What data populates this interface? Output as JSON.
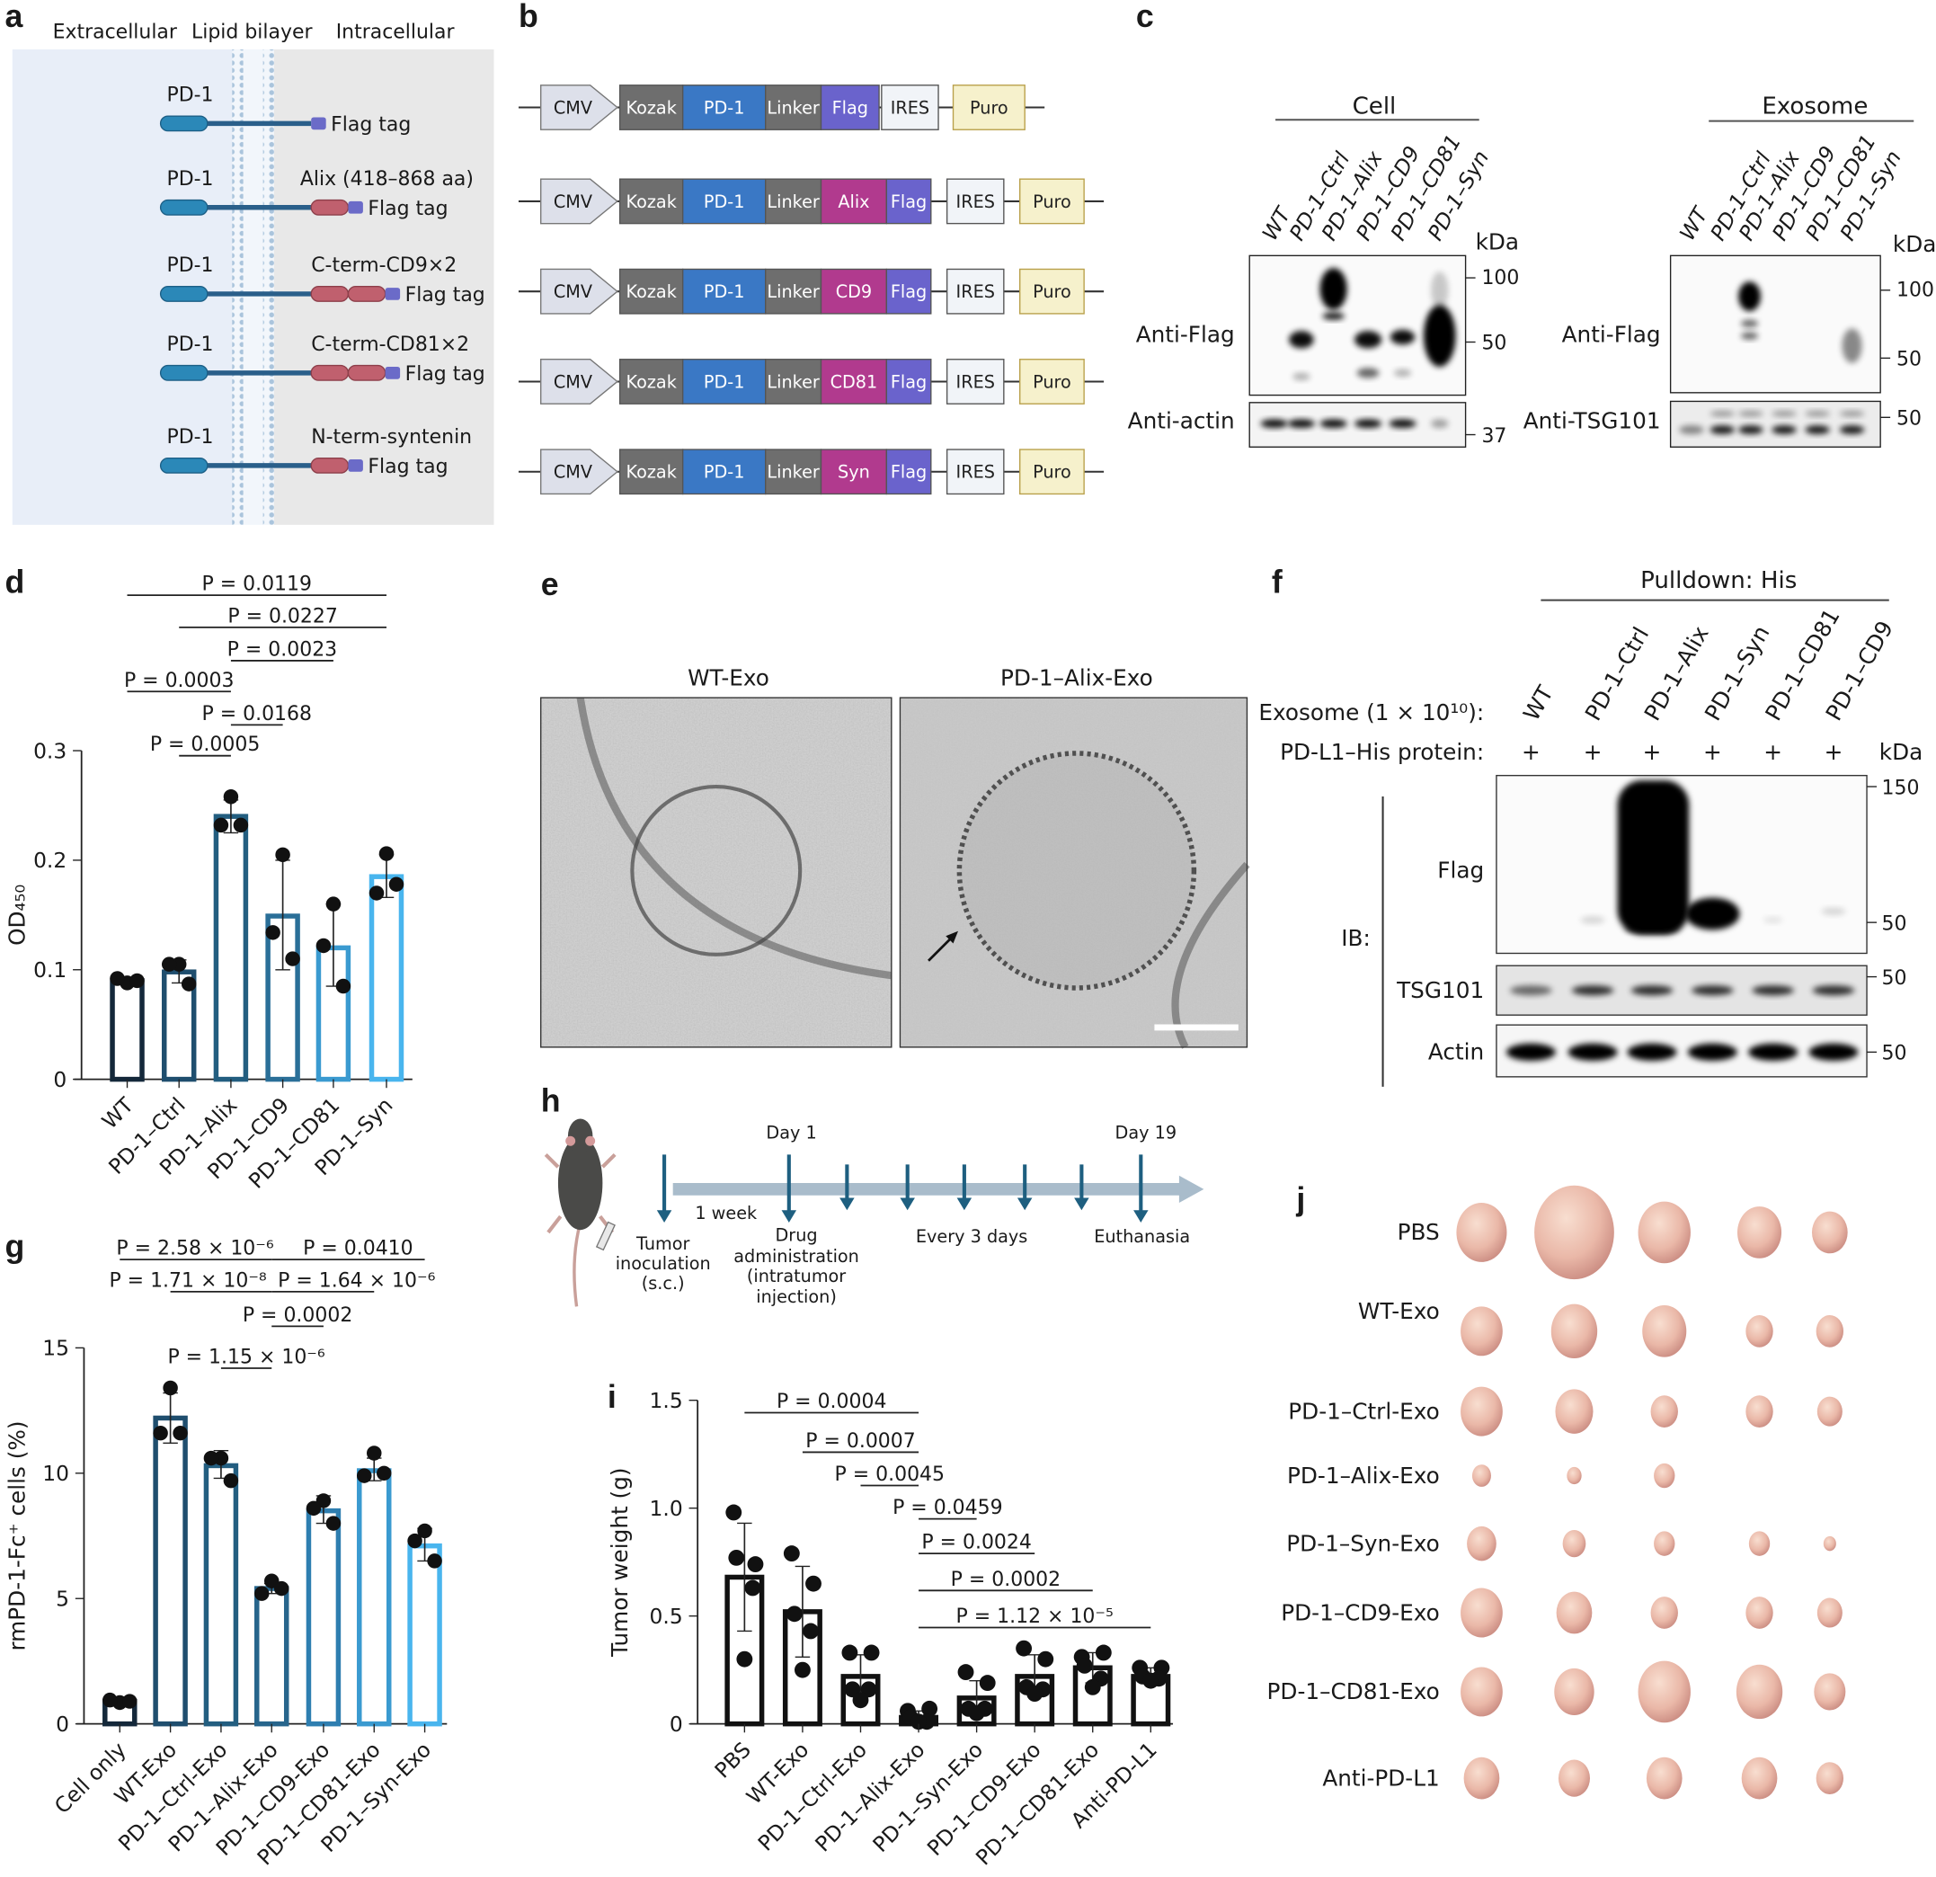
{
  "panel_labels": {
    "a": "a",
    "b": "b",
    "c": "c",
    "d": "d",
    "e": "e",
    "f": "f",
    "g": "g",
    "h": "h",
    "i": "i",
    "j": "j"
  },
  "colors": {
    "membrane_bg_left": "#e8eef8",
    "membrane_bg_right": "#e8e8e8",
    "pd1": "#2b88b8",
    "linker": "#2a5f8a",
    "fusion": "#c0606e",
    "flag": "#6b6bc8",
    "CMV": "#dde0ea",
    "Kozak": "#6e6e6e",
    "PD-1": "#3a78c5",
    "Linker": "#6e6e6e",
    "Flag": "#6a63cc",
    "fusion_segment": "#b13a8e",
    "IRES": "#f1f4f8",
    "Puro": "#f6f1cc",
    "bars_d": [
      "#14283a",
      "#1f4e6e",
      "#235e80",
      "#2a6f98",
      "#3a9ad0",
      "#49b5ee"
    ],
    "bars_g": [
      "#14283a",
      "#1f4e6e",
      "#235e80",
      "#27658c",
      "#2e7eb0",
      "#3a9ad0",
      "#49b5ee"
    ],
    "timeline_arrow": "#1e5f80"
  },
  "a": {
    "headers": [
      "Extracellular",
      "Lipid bilayer",
      "Intracellular"
    ],
    "rows": [
      {
        "pd1": "PD-1",
        "fusion": "",
        "tag": "Flag tag"
      },
      {
        "pd1": "PD-1",
        "fusion": "Alix (418–868 aa)",
        "tag": "Flag tag"
      },
      {
        "pd1": "PD-1",
        "fusion": "C-term-CD9×2",
        "tag": "Flag tag"
      },
      {
        "pd1": "PD-1",
        "fusion": "C-term-CD81×2",
        "tag": "Flag tag"
      },
      {
        "pd1": "PD-1",
        "fusion": "N-term-syntenin",
        "tag": "Flag tag"
      }
    ]
  },
  "b": {
    "rows": [
      [
        "CMV",
        "Kozak",
        "PD-1",
        "Linker",
        "Flag",
        "IRES",
        "Puro"
      ],
      [
        "CMV",
        "Kozak",
        "PD-1",
        "Linker",
        "Alix",
        "Flag",
        "IRES",
        "Puro"
      ],
      [
        "CMV",
        "Kozak",
        "PD-1",
        "Linker",
        "CD9",
        "Flag",
        "IRES",
        "Puro"
      ],
      [
        "CMV",
        "Kozak",
        "PD-1",
        "Linker",
        "CD81",
        "Flag",
        "IRES",
        "Puro"
      ],
      [
        "CMV",
        "Kozak",
        "PD-1",
        "Linker",
        "Syn",
        "Flag",
        "IRES",
        "Puro"
      ]
    ]
  },
  "c": {
    "cell_title": "Cell",
    "exosome_title": "Exosome",
    "lanes": [
      "WT",
      "PD-1–Ctrl",
      "PD-1–Alix",
      "PD-1–CD9",
      "PD-1–CD81",
      "PD-1–Syn"
    ],
    "kda": "kDa",
    "cell_blots": [
      "Anti-Flag",
      "Anti-actin"
    ],
    "exosome_blots": [
      "Anti-Flag",
      "Anti-TSG101"
    ],
    "cell_markers": [
      "100",
      "50",
      "37"
    ],
    "exosome_markers": [
      "100",
      "50",
      "50"
    ]
  },
  "d": {
    "p_values": [
      "P = 0.0119",
      "P = 0.0227",
      "P = 0.0023",
      "P = 0.0003",
      "P = 0.0168",
      "P = 0.0005"
    ]
  },
  "e": {
    "titles": [
      "WT-Exo",
      "PD-1–Alix-Exo"
    ]
  },
  "f": {
    "title": "Pulldown: His",
    "lanes": [
      "WT",
      "PD-1–Ctrl",
      "PD-1–Alix",
      "PD-1–Syn",
      "PD-1–CD81",
      "PD-1–CD9"
    ],
    "exosome_row": "Exosome (1 × 10¹⁰):",
    "protein_row": "PD-L1–His protein:",
    "plus": "+",
    "kda": "kDa",
    "ib": "IB:",
    "blots": [
      "Flag",
      "TSG101",
      "Actin"
    ],
    "markers": [
      "150",
      "50",
      "50",
      "50"
    ]
  },
  "h": {
    "day1": "Day 1",
    "day19": "Day 19",
    "interval": "1 week",
    "inoculation": [
      "Tumor",
      "inoculation",
      "(s.c.)"
    ],
    "drug": [
      "Drug",
      "administration",
      "(intratumor",
      "injection)"
    ],
    "every": "Every 3 days",
    "end": "Euthanasia"
  },
  "j": {
    "rows": [
      "PBS",
      "WT-Exo",
      "PD-1–Ctrl-Exo",
      "PD-1–Alix-Exo",
      "PD-1–Syn-Exo",
      "PD-1–CD9-Exo",
      "PD-1–CD81-Exo",
      "Anti-PD-L1"
    ]
  },
  "chart_data": [
    {
      "panel": "d",
      "type": "bar",
      "categories": [
        "WT",
        "PD-1–Ctrl",
        "PD-1–Alix",
        "PD-1–CD9",
        "PD-1–CD81",
        "PD-1–Syn"
      ],
      "values": [
        0.09,
        0.098,
        0.24,
        0.149,
        0.12,
        0.185
      ],
      "error_low": [
        0.088,
        0.088,
        0.225,
        0.1,
        0.085,
        0.166
      ],
      "error_high": [
        0.092,
        0.109,
        0.255,
        0.2,
        0.16,
        0.205
      ],
      "points": [
        [
          0.088,
          0.092,
          0.09
        ],
        [
          0.105,
          0.105,
          0.087
        ],
        [
          0.258,
          0.232,
          0.232
        ],
        [
          0.205,
          0.134,
          0.11
        ],
        [
          0.16,
          0.122,
          0.085
        ],
        [
          0.206,
          0.17,
          0.178
        ]
      ],
      "ylabel": "OD₄₅₀",
      "ylim": [
        0,
        0.3
      ],
      "yticks": [
        "0",
        "0.1",
        "0.2",
        "0.3"
      ],
      "ytick_values": [
        0,
        0.1,
        0.2,
        0.3
      ],
      "comparisons": [
        [
          "WT",
          "PD-1–Syn",
          "P = 0.0119"
        ],
        [
          "PD-1–Ctrl",
          "PD-1–Syn",
          "P = 0.0227"
        ],
        [
          "PD-1–Alix",
          "PD-1–CD81",
          "P = 0.0023"
        ],
        [
          "WT",
          "PD-1–Alix",
          "P = 0.0003"
        ],
        [
          "PD-1–Alix",
          "PD-1–CD9",
          "P = 0.0168"
        ],
        [
          "PD-1–Ctrl",
          "PD-1–Alix",
          "P = 0.0005"
        ]
      ]
    },
    {
      "panel": "g",
      "type": "bar",
      "categories": [
        "Cell only",
        "WT-Exo",
        "PD-1–Ctrl-Exo",
        "PD-1–Alix-Exo",
        "PD-1–CD9-Exo",
        "PD-1–CD81-Exo",
        "PD-1–Syn-Exo"
      ],
      "values": [
        0.9,
        12.2,
        10.3,
        5.4,
        8.5,
        10.1,
        7.1
      ],
      "error_low": [
        0.85,
        11.2,
        9.8,
        5.2,
        8.0,
        9.7,
        6.5
      ],
      "error_high": [
        0.95,
        13.2,
        10.9,
        5.6,
        9.1,
        10.6,
        7.8
      ],
      "points": [
        [
          0.85,
          0.95,
          0.9
        ],
        [
          13.4,
          11.6,
          11.6
        ],
        [
          10.6,
          10.6,
          9.7
        ],
        [
          5.7,
          5.2,
          5.4
        ],
        [
          8.9,
          8.6,
          8.0
        ],
        [
          10.8,
          9.9,
          10.0
        ],
        [
          7.7,
          7.3,
          6.5
        ]
      ],
      "ylabel": "rmPD-1-Fc⁺ cells (%)",
      "ylim": [
        0,
        15
      ],
      "yticks": [
        "0",
        "5",
        "10",
        "15"
      ],
      "ytick_values": [
        0,
        5,
        10,
        15
      ],
      "comparisons": [
        [
          "Cell only",
          "PD-1–Alix-Exo",
          "P = 2.58 × 10⁻⁶"
        ],
        [
          "PD-1–Alix-Exo",
          "PD-1–Syn-Exo",
          "P = 0.0410"
        ],
        [
          "WT-Exo",
          "PD-1–Alix-Exo",
          "P = 1.71 × 10⁻⁸"
        ],
        [
          "PD-1–Alix-Exo",
          "PD-1–CD81-Exo",
          "P = 1.64 × 10⁻⁶"
        ],
        [
          "PD-1–Alix-Exo",
          "PD-1–CD9-Exo",
          "P = 0.0002"
        ],
        [
          "PD-1–Ctrl-Exo",
          "PD-1–Alix-Exo",
          "P = 1.15 × 10⁻⁶"
        ]
      ]
    },
    {
      "panel": "i",
      "type": "bar",
      "categories": [
        "PBS",
        "WT-Exo",
        "PD-1–Ctrl-Exo",
        "PD-1–Alix-Exo",
        "PD-1–Syn-Exo",
        "PD-1–CD9-Exo",
        "PD-1–CD81-Exo",
        "Anti-PD-L1"
      ],
      "values": [
        0.68,
        0.52,
        0.22,
        0.03,
        0.12,
        0.22,
        0.26,
        0.22
      ],
      "error_low": [
        0.43,
        0.31,
        0.12,
        0.01,
        0.04,
        0.13,
        0.19,
        0.2
      ],
      "error_high": [
        0.93,
        0.73,
        0.32,
        0.06,
        0.2,
        0.32,
        0.33,
        0.26
      ],
      "points": [
        [
          0.98,
          0.74,
          0.77,
          0.63,
          0.3
        ],
        [
          0.79,
          0.65,
          0.51,
          0.43,
          0.25
        ],
        [
          0.33,
          0.33,
          0.16,
          0.16,
          0.11
        ],
        [
          0.06,
          0.07,
          0.03,
          0.01,
          0.01
        ],
        [
          0.24,
          0.19,
          0.07,
          0.07,
          0.05
        ],
        [
          0.35,
          0.3,
          0.17,
          0.16,
          0.14
        ],
        [
          0.31,
          0.33,
          0.27,
          0.21,
          0.17
        ],
        [
          0.26,
          0.26,
          0.22,
          0.21,
          0.2
        ]
      ],
      "ylabel": "Tumor weight (g)",
      "ylim": [
        0,
        1.5
      ],
      "yticks": [
        "0",
        "0.5",
        "1.0",
        "1.5"
      ],
      "ytick_values": [
        0,
        0.5,
        1.0,
        1.5
      ],
      "comparisons": [
        [
          "PBS",
          "PD-1–Alix-Exo",
          "P = 0.0004"
        ],
        [
          "WT-Exo",
          "PD-1–Alix-Exo",
          "P = 0.0007"
        ],
        [
          "PD-1–Ctrl-Exo",
          "PD-1–Alix-Exo",
          "P = 0.0045"
        ],
        [
          "PD-1–Alix-Exo",
          "PD-1–Syn-Exo",
          "P = 0.0459"
        ],
        [
          "PD-1–Alix-Exo",
          "PD-1–CD9-Exo",
          "P = 0.0024"
        ],
        [
          "PD-1–Alix-Exo",
          "PD-1–CD81-Exo",
          "P = 0.0002"
        ],
        [
          "PD-1–Alix-Exo",
          "Anti-PD-L1",
          "P = 1.12 × 10⁻⁵"
        ]
      ]
    }
  ]
}
